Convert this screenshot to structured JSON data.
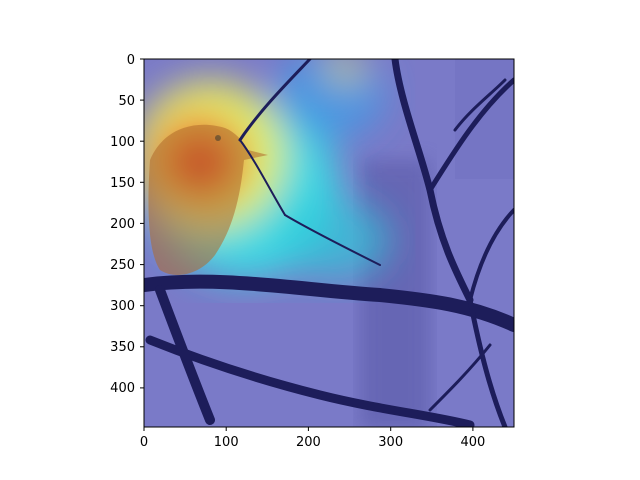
{
  "figure": {
    "x_ticks": [
      "0",
      "100",
      "200",
      "300",
      "400"
    ],
    "y_ticks": [
      "0",
      "50",
      "100",
      "150",
      "200",
      "250",
      "300",
      "350",
      "400"
    ]
  },
  "image": {
    "subject": "bird perched on bare branches",
    "overlay": "jet colormap heatmap",
    "colors": {
      "low": "#2a2aa0",
      "background_tint": "#7a7ac8",
      "mid": "#31e8e8",
      "high_yellow": "#f2f25a",
      "peak": "#e0302a",
      "branch": "#1d1d5a"
    }
  }
}
